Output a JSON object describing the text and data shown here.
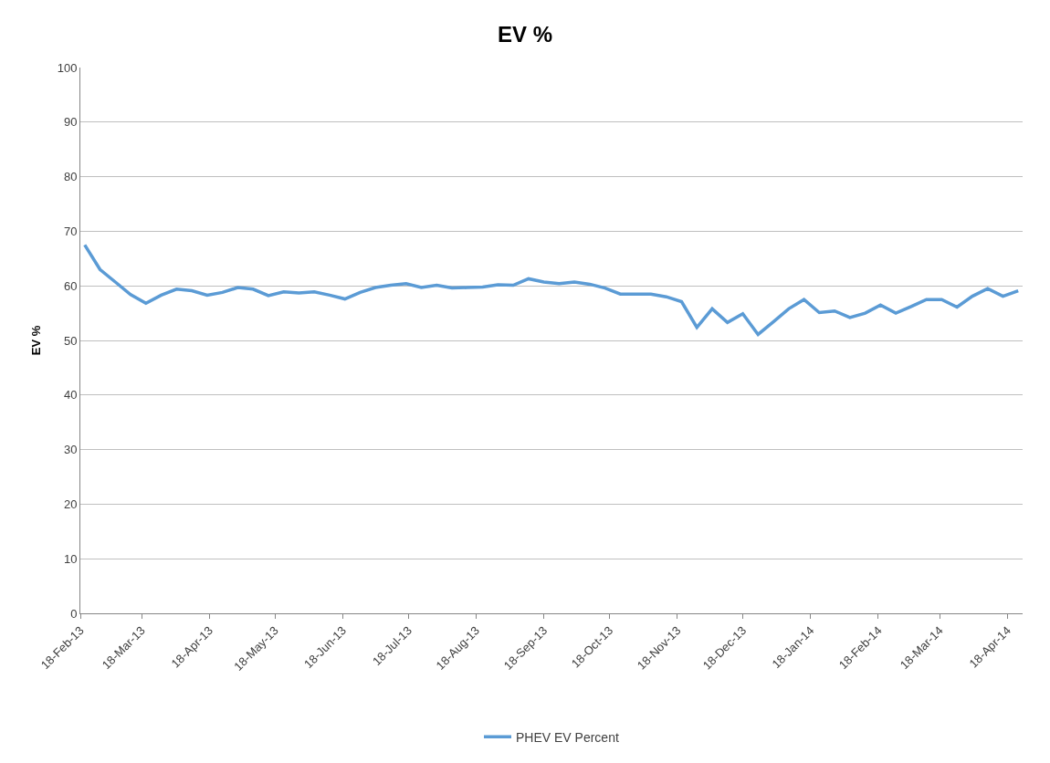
{
  "chart_data": {
    "type": "line",
    "title": "EV %",
    "ylabel": "EV %",
    "x": [
      "2013-02-20",
      "2013-02-27",
      "2013-03-06",
      "2013-03-13",
      "2013-03-20",
      "2013-03-27",
      "2013-04-03",
      "2013-04-10",
      "2013-04-17",
      "2013-04-24",
      "2013-05-01",
      "2013-05-08",
      "2013-05-15",
      "2013-05-22",
      "2013-05-29",
      "2013-06-05",
      "2013-06-12",
      "2013-06-19",
      "2013-06-26",
      "2013-07-03",
      "2013-07-10",
      "2013-07-17",
      "2013-07-24",
      "2013-07-31",
      "2013-08-07",
      "2013-08-14",
      "2013-08-21",
      "2013-08-28",
      "2013-09-04",
      "2013-09-11",
      "2013-09-18",
      "2013-09-25",
      "2013-10-02",
      "2013-10-09",
      "2013-10-16",
      "2013-10-23",
      "2013-10-30",
      "2013-11-06",
      "2013-11-13",
      "2013-11-20",
      "2013-11-27",
      "2013-12-04",
      "2013-12-11",
      "2013-12-18",
      "2013-12-25",
      "2014-01-01",
      "2014-01-08",
      "2014-01-15",
      "2014-01-22",
      "2014-01-29",
      "2014-02-05",
      "2014-02-12",
      "2014-02-19",
      "2014-02-26",
      "2014-03-05",
      "2014-03-12",
      "2014-03-19",
      "2014-03-26",
      "2014-04-02",
      "2014-04-09",
      "2014-04-16",
      "2014-04-23"
    ],
    "series": [
      {
        "name": "PHEV EV Percent",
        "color": "#5b9bd5",
        "values": [
          67.5,
          63.0,
          60.7,
          58.4,
          56.8,
          58.3,
          59.4,
          59.1,
          58.3,
          58.8,
          59.7,
          59.4,
          58.2,
          58.9,
          58.7,
          58.9,
          58.3,
          57.6,
          58.8,
          59.7,
          60.1,
          60.4,
          59.7,
          60.1,
          59.6,
          59.7,
          59.8,
          60.2,
          60.1,
          61.3,
          60.7,
          60.4,
          60.7,
          60.3,
          59.6,
          58.5,
          58.5,
          58.5,
          58.0,
          57.1,
          52.4,
          55.8,
          53.3,
          54.9,
          51.1,
          53.4,
          55.8,
          57.5,
          55.1,
          55.4,
          54.2,
          55.0,
          56.5,
          55.0,
          56.2,
          57.5,
          57.5,
          56.1,
          58.1,
          59.5,
          58.1,
          59.1
        ]
      }
    ],
    "xlim": [
      "2013-02-18",
      "2014-04-25"
    ],
    "xticks": [
      {
        "value": "2013-02-18",
        "label": "18-Feb-13"
      },
      {
        "value": "2013-03-18",
        "label": "18-Mar-13"
      },
      {
        "value": "2013-04-18",
        "label": "18-Apr-13"
      },
      {
        "value": "2013-05-18",
        "label": "18-May-13"
      },
      {
        "value": "2013-06-18",
        "label": "18-Jun-13"
      },
      {
        "value": "2013-07-18",
        "label": "18-Jul-13"
      },
      {
        "value": "2013-08-18",
        "label": "18-Aug-13"
      },
      {
        "value": "2013-09-18",
        "label": "18-Sep-13"
      },
      {
        "value": "2013-10-18",
        "label": "18-Oct-13"
      },
      {
        "value": "2013-11-18",
        "label": "18-Nov-13"
      },
      {
        "value": "2013-12-18",
        "label": "18-Dec-13"
      },
      {
        "value": "2014-01-18",
        "label": "18-Jan-14"
      },
      {
        "value": "2014-02-18",
        "label": "18-Feb-14"
      },
      {
        "value": "2014-03-18",
        "label": "18-Mar-14"
      },
      {
        "value": "2014-04-18",
        "label": "18-Apr-14"
      }
    ],
    "ylim": [
      0,
      100
    ],
    "yticks": [
      0,
      10,
      20,
      30,
      40,
      50,
      60,
      70,
      80,
      90,
      100
    ],
    "grid": "y",
    "legend": "bottom",
    "marker": "none",
    "line_style": "solid"
  }
}
